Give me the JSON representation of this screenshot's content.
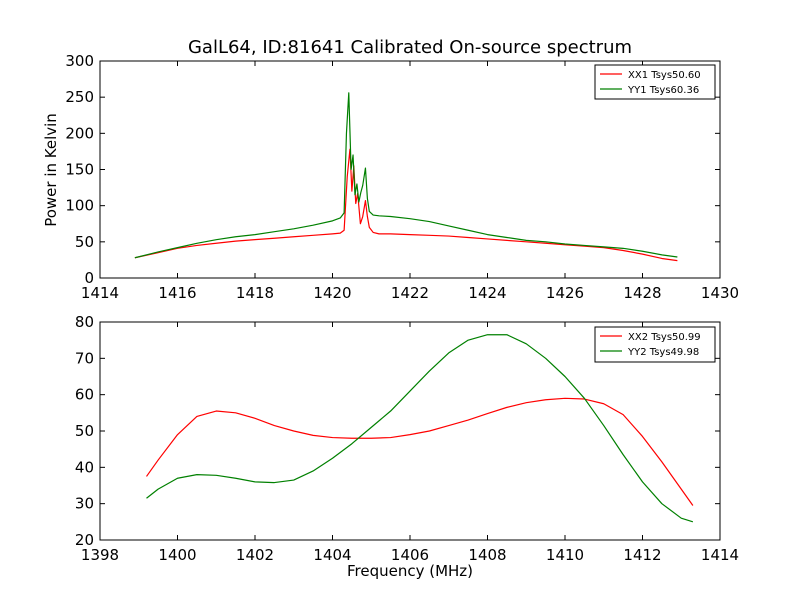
{
  "figure": {
    "title": "GalL64, ID:81641 Calibrated On-source spectrum"
  },
  "chart_data": [
    {
      "type": "line",
      "title": "GalL64, ID:81641 Calibrated On-source spectrum",
      "xlabel": "",
      "ylabel": "Power in Kelvin",
      "xlim": [
        1414,
        1430
      ],
      "ylim": [
        0,
        300
      ],
      "xticks": [
        1414,
        1416,
        1418,
        1420,
        1422,
        1424,
        1426,
        1428,
        1430
      ],
      "yticks": [
        0,
        50,
        100,
        150,
        200,
        250,
        300
      ],
      "legend": "top-right",
      "grid": false,
      "series": [
        {
          "name": "XX1 Tsys50.60",
          "color": "#ff0000",
          "x": [
            1414.9,
            1415.5,
            1416,
            1416.5,
            1417,
            1417.5,
            1418,
            1418.5,
            1419,
            1419.5,
            1420,
            1420.2,
            1420.3,
            1420.38,
            1420.45,
            1420.5,
            1420.55,
            1420.6,
            1420.65,
            1420.72,
            1420.78,
            1420.85,
            1420.9,
            1420.95,
            1421.05,
            1421.2,
            1421.5,
            1422,
            1422.5,
            1423,
            1423.5,
            1424,
            1424.5,
            1425,
            1425.5,
            1426,
            1426.5,
            1427,
            1427.5,
            1428,
            1428.5,
            1428.9
          ],
          "y": [
            28,
            35,
            41,
            45,
            48,
            51,
            53,
            55,
            57,
            59,
            61,
            62,
            66,
            140,
            178,
            120,
            155,
            103,
            117,
            75,
            85,
            107,
            85,
            70,
            63,
            61,
            61,
            60,
            59,
            58,
            56,
            54,
            52,
            50,
            48,
            46,
            44,
            42,
            38,
            33,
            27,
            24
          ]
        },
        {
          "name": "YY1 Tsys60.36",
          "color": "#008000",
          "x": [
            1414.9,
            1415.5,
            1416,
            1416.5,
            1417,
            1417.5,
            1418,
            1418.5,
            1419,
            1419.5,
            1420,
            1420.2,
            1420.3,
            1420.36,
            1420.42,
            1420.48,
            1420.53,
            1420.58,
            1420.63,
            1420.68,
            1420.73,
            1420.78,
            1420.85,
            1420.9,
            1420.95,
            1421.05,
            1421.2,
            1421.5,
            1422,
            1422.5,
            1423,
            1423.5,
            1424,
            1424.5,
            1425,
            1425.5,
            1426,
            1426.5,
            1427,
            1427.5,
            1428,
            1428.5,
            1428.9
          ],
          "y": [
            28,
            36,
            42,
            48,
            53,
            57,
            60,
            64,
            68,
            73,
            79,
            83,
            90,
            200,
            256,
            150,
            170,
            115,
            130,
            105,
            118,
            128,
            152,
            110,
            92,
            87,
            86,
            85,
            82,
            78,
            72,
            66,
            60,
            56,
            52,
            50,
            47,
            45,
            43,
            41,
            37,
            32,
            29
          ]
        }
      ]
    },
    {
      "type": "line",
      "title": "",
      "xlabel": "Frequency (MHz)",
      "ylabel": "",
      "xlim": [
        1398,
        1414
      ],
      "ylim": [
        20,
        80
      ],
      "xticks": [
        1398,
        1400,
        1402,
        1404,
        1406,
        1408,
        1410,
        1412,
        1414
      ],
      "yticks": [
        20,
        30,
        40,
        50,
        60,
        70,
        80
      ],
      "legend": "top-right",
      "grid": false,
      "series": [
        {
          "name": "XX2 Tsys50.99",
          "color": "#ff0000",
          "x": [
            1399.2,
            1399.5,
            1400,
            1400.5,
            1401,
            1401.5,
            1402,
            1402.5,
            1403,
            1403.5,
            1404,
            1404.5,
            1405,
            1405.5,
            1406,
            1406.5,
            1407,
            1407.5,
            1408,
            1408.5,
            1409,
            1409.5,
            1410,
            1410.5,
            1411,
            1411.5,
            1412,
            1412.5,
            1413,
            1413.3
          ],
          "y": [
            37.5,
            42,
            49,
            54,
            55.5,
            55,
            53.5,
            51.5,
            50,
            48.8,
            48.2,
            48,
            48,
            48.2,
            49,
            50,
            51.5,
            53,
            54.8,
            56.5,
            57.8,
            58.6,
            59,
            58.8,
            57.5,
            54.5,
            48.5,
            41.5,
            34,
            29.5
          ]
        },
        {
          "name": "YY2 Tsys49.98",
          "color": "#008000",
          "x": [
            1399.2,
            1399.5,
            1400,
            1400.5,
            1401,
            1401.5,
            1402,
            1402.5,
            1403,
            1403.5,
            1404,
            1404.5,
            1405,
            1405.5,
            1406,
            1406.5,
            1407,
            1407.5,
            1408,
            1408.5,
            1409,
            1409.5,
            1410,
            1410.5,
            1411,
            1411.5,
            1412,
            1412.5,
            1413,
            1413.3
          ],
          "y": [
            31.5,
            34,
            37,
            38,
            37.8,
            37,
            36,
            35.8,
            36.5,
            39,
            42.5,
            46.5,
            51,
            55.5,
            61,
            66.5,
            71.5,
            75,
            76.5,
            76.5,
            74,
            70,
            65,
            59,
            51.5,
            43.5,
            36,
            30,
            26,
            25
          ]
        }
      ]
    }
  ]
}
